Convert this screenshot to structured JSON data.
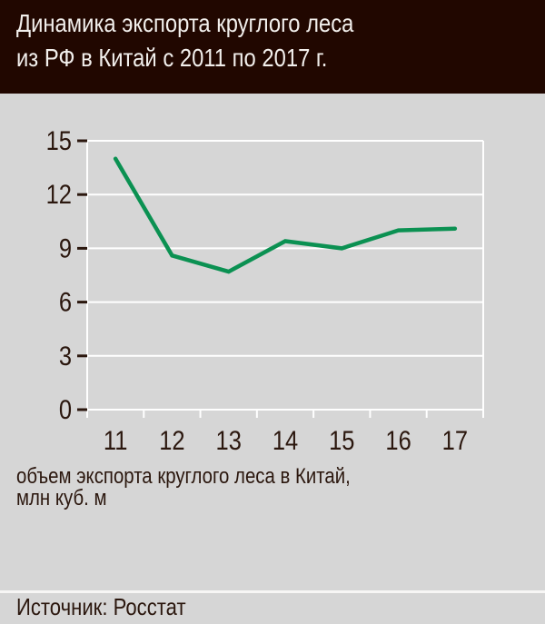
{
  "header": {
    "title_line1": "Динамика экспорта круглого леса",
    "title_line2": "из РФ в Китай с 2011 по 2017 г."
  },
  "chart_data": {
    "type": "line",
    "categories": [
      "11",
      "12",
      "13",
      "14",
      "15",
      "16",
      "17"
    ],
    "series": [
      {
        "name": "объем экспорта круглого леса в Китай, млн куб. м",
        "values": [
          14.0,
          8.6,
          7.7,
          9.4,
          9.0,
          10.0,
          10.1
        ]
      }
    ],
    "title": "Динамика экспорта круглого леса из РФ в Китай с 2011 по 2017 г.",
    "xlabel": "",
    "ylabel": "",
    "ylim": [
      0,
      15
    ],
    "yticks": [
      0,
      3,
      6,
      9,
      12,
      15
    ],
    "grid": true,
    "legend": "none",
    "colors": {
      "line": "#0b9152",
      "grid": "#ffffff",
      "axis_text": "#2b170e",
      "background": "#d6d6d6",
      "header_background": "#210700",
      "header_text": "#f2efec"
    }
  },
  "caption": {
    "line1": "объем экспорта круглого леса в Китай,",
    "line2": "млн куб. м"
  },
  "footer": {
    "source_label": "Источник: Росстат"
  }
}
